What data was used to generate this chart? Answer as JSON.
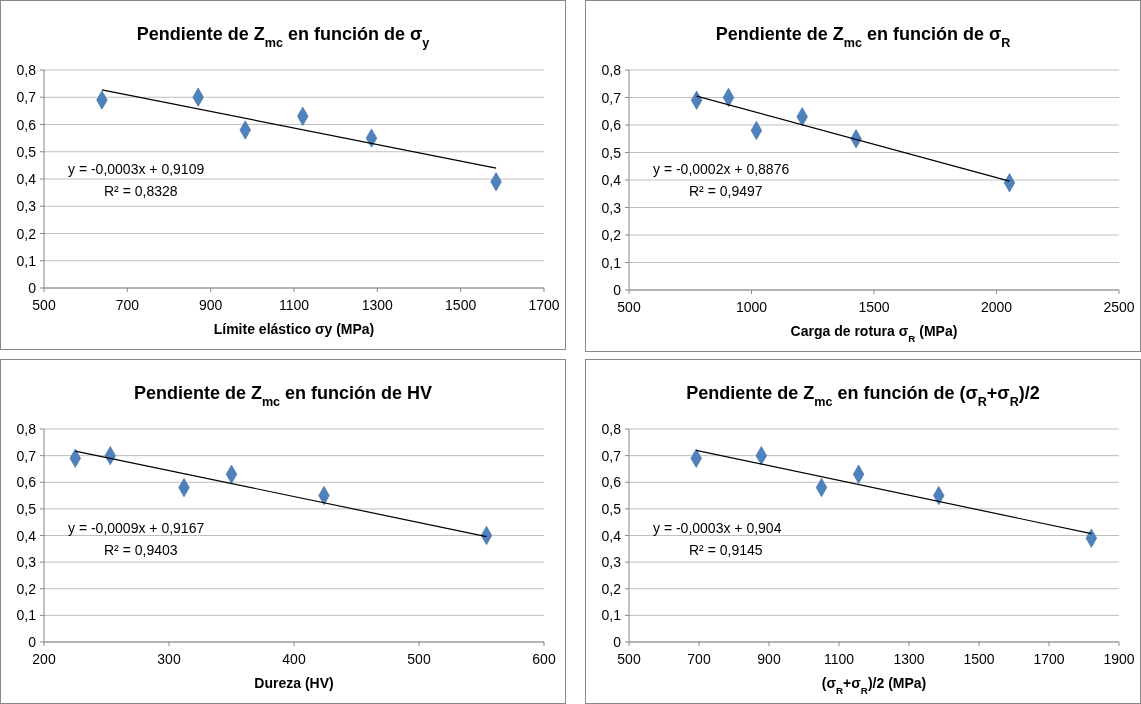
{
  "chart_data": [
    {
      "type": "scatter",
      "title": "Pendiente de Z$_{mc}$ en función de σ$_{y}$",
      "xlabel": "Límite elástico σy (MPa)",
      "xlim": [
        500,
        1700
      ],
      "xticks": [
        500,
        700,
        900,
        1100,
        1300,
        1500,
        1700
      ],
      "ylim": [
        0,
        0.8
      ],
      "yticks": [
        {
          "value": 0,
          "label": "0"
        },
        {
          "value": 0.1,
          "label": "0,1"
        },
        {
          "value": 0.2,
          "label": "0,2"
        },
        {
          "value": 0.3,
          "label": "0,3"
        },
        {
          "value": 0.4,
          "label": "0,4"
        },
        {
          "value": 0.5,
          "label": "0,5"
        },
        {
          "value": 0.6,
          "label": "0,6"
        },
        {
          "value": 0.7,
          "label": "0,7"
        },
        {
          "value": 0.8,
          "label": "0,8"
        }
      ],
      "grid": "y",
      "annotations": [
        "y = -0,0003x + 0,9109",
        "R² = 0,8328"
      ],
      "series": [
        {
          "color": "#4f81bd",
          "marker": "diamond",
          "x": [
            639,
            870,
            983,
            1121,
            1286,
            1585
          ],
          "values": [
            0.69,
            0.7,
            0.58,
            0.63,
            0.55,
            0.39
          ]
        },
        {
          "type": "line",
          "marker": "none",
          "color": "#000000",
          "x": [
            639,
            1585
          ],
          "values": [
            0.727,
            0.44
          ]
        }
      ]
    },
    {
      "type": "scatter",
      "title": "Pendiente de Z$_{mc}$ en función de σ$_{R}$",
      "xlabel": "Carga de rotura σ$_{R}$ (MPa)",
      "xlim": [
        500,
        2500
      ],
      "xticks": [
        500,
        1000,
        1500,
        2000,
        2500
      ],
      "ylim": [
        0,
        0.8
      ],
      "yticks": [
        {
          "value": 0,
          "label": "0"
        },
        {
          "value": 0.1,
          "label": "0,1"
        },
        {
          "value": 0.2,
          "label": "0,2"
        },
        {
          "value": 0.3,
          "label": "0,3"
        },
        {
          "value": 0.4,
          "label": "0,4"
        },
        {
          "value": 0.5,
          "label": "0,5"
        },
        {
          "value": 0.6,
          "label": "0,6"
        },
        {
          "value": 0.7,
          "label": "0,7"
        },
        {
          "value": 0.8,
          "label": "0,8"
        }
      ],
      "grid": "y",
      "annotations": [
        "y = -0,0002x + 0,8876",
        "R² = 0,9497"
      ],
      "series": [
        {
          "color": "#4f81bd",
          "marker": "diamond",
          "x": [
            776,
            906,
            1020,
            1207,
            1427,
            2053
          ],
          "values": [
            0.69,
            0.7,
            0.58,
            0.63,
            0.55,
            0.39
          ]
        },
        {
          "type": "line",
          "marker": "none",
          "color": "#000000",
          "x": [
            776,
            2053
          ],
          "values": [
            0.705,
            0.396
          ]
        }
      ]
    },
    {
      "type": "scatter",
      "title": "Pendiente de Z$_{mc}$ en función de HV",
      "xlabel": "Dureza (HV)",
      "xlim": [
        200,
        600
      ],
      "xticks": [
        200,
        300,
        400,
        500,
        600
      ],
      "ylim": [
        0,
        0.8
      ],
      "yticks": [
        {
          "value": 0,
          "label": "0"
        },
        {
          "value": 0.1,
          "label": "0,1"
        },
        {
          "value": 0.2,
          "label": "0,2"
        },
        {
          "value": 0.3,
          "label": "0,3"
        },
        {
          "value": 0.4,
          "label": "0,4"
        },
        {
          "value": 0.5,
          "label": "0,5"
        },
        {
          "value": 0.6,
          "label": "0,6"
        },
        {
          "value": 0.7,
          "label": "0,7"
        },
        {
          "value": 0.8,
          "label": "0,8"
        }
      ],
      "grid": "y",
      "annotations": [
        "y = -0,0009x + 0,9167",
        "R² = 0,9403"
      ],
      "series": [
        {
          "color": "#4f81bd",
          "marker": "diamond",
          "x": [
            225,
            253,
            312,
            350,
            424,
            554
          ],
          "values": [
            0.69,
            0.7,
            0.58,
            0.63,
            0.55,
            0.4
          ]
        },
        {
          "type": "line",
          "marker": "none",
          "color": "#000000",
          "x": [
            225,
            554
          ],
          "values": [
            0.717,
            0.396
          ]
        }
      ]
    },
    {
      "type": "scatter",
      "title": "Pendiente de Z$_{mc}$ en función de (σ$_{R}$+σ$_{R}$)/2",
      "xlabel": "(σ$_{R}$+σ$_{R}$)/2 (MPa)",
      "xlim": [
        500,
        1900
      ],
      "xticks": [
        500,
        700,
        900,
        1100,
        1300,
        1500,
        1700,
        1900
      ],
      "ylim": [
        0,
        0.8
      ],
      "yticks": [
        {
          "value": 0,
          "label": "0"
        },
        {
          "value": 0.1,
          "label": "0,1"
        },
        {
          "value": 0.2,
          "label": "0,2"
        },
        {
          "value": 0.3,
          "label": "0,3"
        },
        {
          "value": 0.4,
          "label": "0,4"
        },
        {
          "value": 0.5,
          "label": "0,5"
        },
        {
          "value": 0.6,
          "label": "0,6"
        },
        {
          "value": 0.7,
          "label": "0,7"
        },
        {
          "value": 0.8,
          "label": "0,8"
        }
      ],
      "grid": "y",
      "annotations": [
        "y = -0,0003x + 0,904",
        "R² = 0,9145"
      ],
      "series": [
        {
          "color": "#4f81bd",
          "marker": "diamond",
          "x": [
            692,
            878,
            1050,
            1156,
            1385,
            1821
          ],
          "values": [
            0.69,
            0.7,
            0.58,
            0.63,
            0.55,
            0.39
          ]
        },
        {
          "type": "line",
          "marker": "none",
          "color": "#000000",
          "x": [
            692,
            1821
          ],
          "values": [
            0.72,
            0.407
          ]
        }
      ]
    }
  ]
}
